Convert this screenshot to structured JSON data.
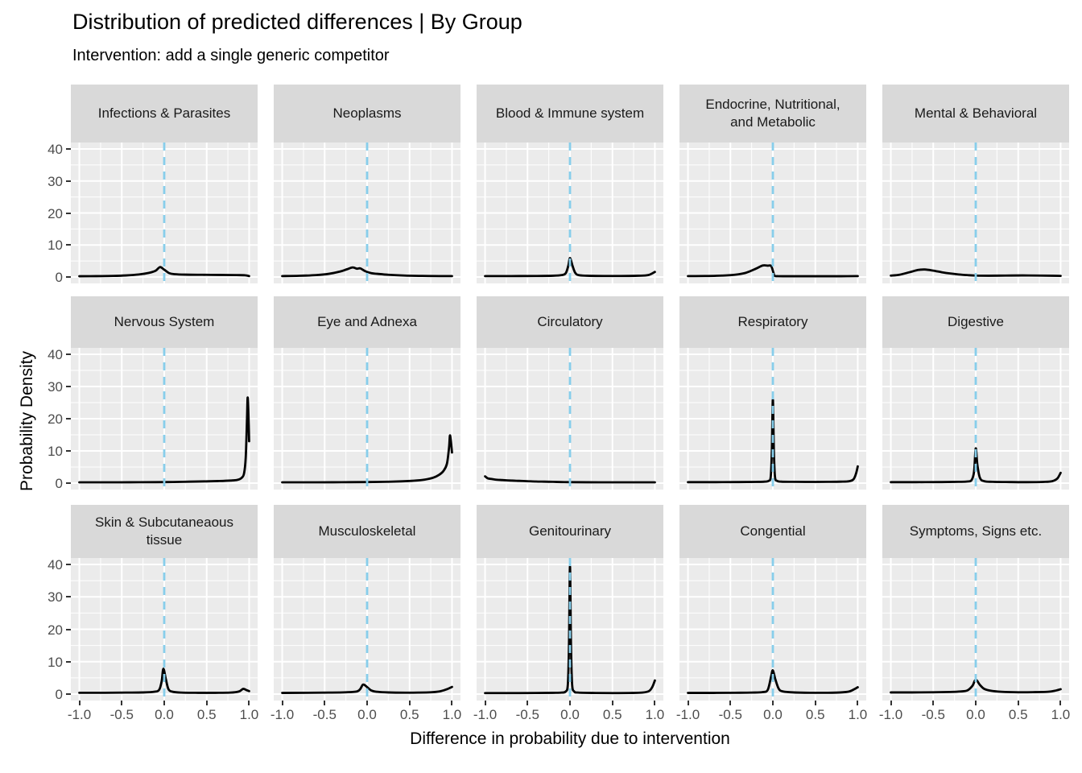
{
  "title": "Distribution of predicted differences | By Group",
  "subtitle": "Intervention: add a single generic competitor",
  "chart_data": {
    "type": "line",
    "subtype": "faceted-density",
    "xlabel": "Difference in probability due to intervention",
    "ylabel": "Probability Density",
    "xlim": [
      -1.1,
      1.1
    ],
    "ylim": [
      -2,
      42
    ],
    "x_ticks": [
      -1.0,
      -0.5,
      0.0,
      0.5,
      1.0
    ],
    "x_tick_labels": [
      "-1.0",
      "-0.5",
      "0.0",
      "0.5",
      "1.0"
    ],
    "x_minor_ticks": [
      -0.75,
      -0.25,
      0.25,
      0.75
    ],
    "y_ticks": [
      0,
      10,
      20,
      30,
      40
    ],
    "y_tick_labels": [
      "0",
      "10",
      "20",
      "30",
      "40"
    ],
    "y_minor_ticks": [
      5,
      15,
      25,
      35
    ],
    "grid": true,
    "vline_x": 0,
    "vline_style": "dashed",
    "colors": {
      "panel_bg": "#EBEBEB",
      "strip_bg": "#D9D9D9",
      "grid": "#FFFFFF",
      "curve": "#000000",
      "vline": "#87CEEB",
      "axis_text": "#4D4D4D",
      "tick": "#333333",
      "text": "#1A1A1A"
    },
    "facets": [
      {
        "label": "Infections & Parasites",
        "curve": [
          [
            -1,
            0.25
          ],
          [
            -0.8,
            0.28
          ],
          [
            -0.6,
            0.35
          ],
          [
            -0.45,
            0.5
          ],
          [
            -0.3,
            0.8
          ],
          [
            -0.18,
            1.3
          ],
          [
            -0.1,
            2.0
          ],
          [
            -0.05,
            3.1
          ],
          [
            0,
            2.3
          ],
          [
            0.06,
            1.2
          ],
          [
            0.12,
            0.9
          ],
          [
            0.25,
            0.75
          ],
          [
            0.45,
            0.7
          ],
          [
            0.65,
            0.65
          ],
          [
            0.85,
            0.6
          ],
          [
            0.95,
            0.55
          ],
          [
            1,
            0.3
          ]
        ]
      },
      {
        "label": "Neoplasms",
        "curve": [
          [
            -1,
            0.3
          ],
          [
            -0.8,
            0.38
          ],
          [
            -0.6,
            0.6
          ],
          [
            -0.45,
            1.0
          ],
          [
            -0.32,
            1.7
          ],
          [
            -0.24,
            2.4
          ],
          [
            -0.17,
            3.0
          ],
          [
            -0.12,
            2.6
          ],
          [
            -0.08,
            2.7
          ],
          [
            -0.02,
            1.8
          ],
          [
            0.05,
            1.2
          ],
          [
            0.12,
            1.0
          ],
          [
            0.25,
            0.7
          ],
          [
            0.45,
            0.45
          ],
          [
            0.65,
            0.35
          ],
          [
            0.85,
            0.3
          ],
          [
            1,
            0.3
          ]
        ]
      },
      {
        "label": "Blood & Immune system",
        "curve": [
          [
            -1,
            0.3
          ],
          [
            -0.7,
            0.3
          ],
          [
            -0.4,
            0.33
          ],
          [
            -0.2,
            0.4
          ],
          [
            -0.1,
            0.6
          ],
          [
            -0.05,
            1.2
          ],
          [
            -0.02,
            3.5
          ],
          [
            0,
            5.9
          ],
          [
            0.03,
            3.5
          ],
          [
            0.06,
            1.4
          ],
          [
            0.1,
            0.6
          ],
          [
            0.2,
            0.4
          ],
          [
            0.4,
            0.33
          ],
          [
            0.6,
            0.33
          ],
          [
            0.8,
            0.4
          ],
          [
            0.92,
            0.6
          ],
          [
            1,
            1.6
          ]
        ]
      },
      {
        "label": "Endocrine, Nutritional,\nand Metabolic",
        "curve": [
          [
            -1,
            0.3
          ],
          [
            -0.8,
            0.32
          ],
          [
            -0.6,
            0.45
          ],
          [
            -0.45,
            0.7
          ],
          [
            -0.32,
            1.3
          ],
          [
            -0.2,
            2.6
          ],
          [
            -0.12,
            3.6
          ],
          [
            -0.06,
            3.55
          ],
          [
            -0.02,
            3.45
          ],
          [
            0.005,
            1.5
          ],
          [
            0.02,
            0.4
          ],
          [
            0.06,
            0.27
          ],
          [
            0.2,
            0.25
          ],
          [
            0.4,
            0.25
          ],
          [
            0.6,
            0.25
          ],
          [
            0.8,
            0.25
          ],
          [
            1,
            0.3
          ]
        ]
      },
      {
        "label": "Mental & Behavioral",
        "curve": [
          [
            -1,
            0.45
          ],
          [
            -0.9,
            0.7
          ],
          [
            -0.78,
            1.5
          ],
          [
            -0.68,
            2.2
          ],
          [
            -0.6,
            2.35
          ],
          [
            -0.5,
            2.0
          ],
          [
            -0.4,
            1.5
          ],
          [
            -0.3,
            1.1
          ],
          [
            -0.2,
            0.8
          ],
          [
            -0.1,
            0.6
          ],
          [
            0,
            0.45
          ],
          [
            0.15,
            0.4
          ],
          [
            0.35,
            0.45
          ],
          [
            0.55,
            0.5
          ],
          [
            0.75,
            0.45
          ],
          [
            0.9,
            0.4
          ],
          [
            1,
            0.35
          ]
        ]
      },
      {
        "label": "Nervous System",
        "curve": [
          [
            -1,
            0.25
          ],
          [
            -0.7,
            0.25
          ],
          [
            -0.4,
            0.27
          ],
          [
            -0.1,
            0.3
          ],
          [
            0.1,
            0.35
          ],
          [
            0.3,
            0.45
          ],
          [
            0.5,
            0.55
          ],
          [
            0.65,
            0.65
          ],
          [
            0.78,
            0.8
          ],
          [
            0.86,
            1.0
          ],
          [
            0.91,
            1.6
          ],
          [
            0.94,
            3.0
          ],
          [
            0.96,
            8
          ],
          [
            0.975,
            20
          ],
          [
            0.982,
            26.5
          ],
          [
            0.99,
            23
          ],
          [
            1,
            13
          ]
        ]
      },
      {
        "label": "Eye and Adnexa",
        "curve": [
          [
            -1,
            0.25
          ],
          [
            -0.6,
            0.25
          ],
          [
            -0.3,
            0.28
          ],
          [
            0,
            0.33
          ],
          [
            0.2,
            0.4
          ],
          [
            0.4,
            0.55
          ],
          [
            0.55,
            0.75
          ],
          [
            0.68,
            1.1
          ],
          [
            0.78,
            1.7
          ],
          [
            0.85,
            2.6
          ],
          [
            0.9,
            3.8
          ],
          [
            0.94,
            6
          ],
          [
            0.965,
            11
          ],
          [
            0.975,
            14.7
          ],
          [
            0.985,
            13.5
          ],
          [
            1,
            9.5
          ]
        ]
      },
      {
        "label": "Circulatory",
        "curve": [
          [
            -1,
            2.1
          ],
          [
            -0.97,
            1.5
          ],
          [
            -0.94,
            1.35
          ],
          [
            -0.88,
            1.1
          ],
          [
            -0.8,
            0.95
          ],
          [
            -0.7,
            0.8
          ],
          [
            -0.6,
            0.7
          ],
          [
            -0.5,
            0.6
          ],
          [
            -0.4,
            0.5
          ],
          [
            -0.3,
            0.45
          ],
          [
            -0.2,
            0.4
          ],
          [
            -0.1,
            0.33
          ],
          [
            0,
            0.3
          ],
          [
            0.2,
            0.27
          ],
          [
            0.45,
            0.25
          ],
          [
            0.7,
            0.25
          ],
          [
            1,
            0.25
          ]
        ]
      },
      {
        "label": "Respiratory",
        "curve": [
          [
            -1,
            0.3
          ],
          [
            -0.7,
            0.3
          ],
          [
            -0.4,
            0.33
          ],
          [
            -0.2,
            0.38
          ],
          [
            -0.1,
            0.45
          ],
          [
            -0.05,
            0.7
          ],
          [
            -0.025,
            2
          ],
          [
            -0.012,
            10
          ],
          [
            0,
            26
          ],
          [
            0.012,
            10
          ],
          [
            0.025,
            2
          ],
          [
            0.05,
            0.7
          ],
          [
            0.1,
            0.45
          ],
          [
            0.25,
            0.4
          ],
          [
            0.45,
            0.38
          ],
          [
            0.65,
            0.4
          ],
          [
            0.8,
            0.45
          ],
          [
            0.9,
            0.6
          ],
          [
            0.95,
            1.2
          ],
          [
            0.98,
            3
          ],
          [
            1,
            5.2
          ]
        ]
      },
      {
        "label": "Digestive",
        "curve": [
          [
            -1,
            0.3
          ],
          [
            -0.7,
            0.3
          ],
          [
            -0.4,
            0.33
          ],
          [
            -0.2,
            0.4
          ],
          [
            -0.1,
            0.5
          ],
          [
            -0.05,
            0.9
          ],
          [
            -0.02,
            3.5
          ],
          [
            0,
            10.8
          ],
          [
            0.02,
            5.5
          ],
          [
            0.05,
            1.6
          ],
          [
            0.1,
            0.6
          ],
          [
            0.2,
            0.4
          ],
          [
            0.4,
            0.33
          ],
          [
            0.6,
            0.3
          ],
          [
            0.8,
            0.38
          ],
          [
            0.9,
            0.6
          ],
          [
            0.96,
            1.4
          ],
          [
            1,
            3.2
          ]
        ]
      },
      {
        "label": "Skin & Subcutaneaous\ntissue",
        "curve": [
          [
            -1,
            0.4
          ],
          [
            -0.7,
            0.4
          ],
          [
            -0.45,
            0.45
          ],
          [
            -0.25,
            0.5
          ],
          [
            -0.12,
            0.7
          ],
          [
            -0.06,
            1.3
          ],
          [
            -0.03,
            4.0
          ],
          [
            -0.01,
            7.8
          ],
          [
            0.02,
            4.5
          ],
          [
            0.05,
            1.5
          ],
          [
            0.1,
            0.7
          ],
          [
            0.2,
            0.45
          ],
          [
            0.4,
            0.38
          ],
          [
            0.6,
            0.38
          ],
          [
            0.78,
            0.45
          ],
          [
            0.88,
            0.8
          ],
          [
            0.93,
            1.6
          ],
          [
            0.97,
            1.2
          ],
          [
            1,
            0.9
          ]
        ]
      },
      {
        "label": "Musculoskeletal",
        "curve": [
          [
            -1,
            0.35
          ],
          [
            -0.7,
            0.4
          ],
          [
            -0.45,
            0.45
          ],
          [
            -0.25,
            0.55
          ],
          [
            -0.12,
            0.8
          ],
          [
            -0.08,
            1.6
          ],
          [
            -0.05,
            2.9
          ],
          [
            -0.02,
            2.6
          ],
          [
            0.05,
            1.1
          ],
          [
            0.12,
            0.7
          ],
          [
            0.25,
            0.5
          ],
          [
            0.45,
            0.42
          ],
          [
            0.6,
            0.45
          ],
          [
            0.75,
            0.55
          ],
          [
            0.85,
            0.8
          ],
          [
            0.93,
            1.4
          ],
          [
            1,
            2.2
          ]
        ]
      },
      {
        "label": "Genitourinary",
        "curve": [
          [
            -1,
            0.3
          ],
          [
            -0.7,
            0.3
          ],
          [
            -0.4,
            0.33
          ],
          [
            -0.2,
            0.38
          ],
          [
            -0.1,
            0.45
          ],
          [
            -0.05,
            0.8
          ],
          [
            -0.025,
            3
          ],
          [
            -0.012,
            15
          ],
          [
            0,
            39.5
          ],
          [
            0.012,
            15
          ],
          [
            0.025,
            3
          ],
          [
            0.05,
            0.8
          ],
          [
            0.1,
            0.45
          ],
          [
            0.3,
            0.33
          ],
          [
            0.5,
            0.3
          ],
          [
            0.7,
            0.33
          ],
          [
            0.85,
            0.45
          ],
          [
            0.93,
            0.9
          ],
          [
            0.97,
            2.2
          ],
          [
            1,
            4.2
          ]
        ]
      },
      {
        "label": "Congential",
        "curve": [
          [
            -1,
            0.35
          ],
          [
            -0.7,
            0.35
          ],
          [
            -0.45,
            0.4
          ],
          [
            -0.25,
            0.45
          ],
          [
            -0.12,
            0.6
          ],
          [
            -0.06,
            1.3
          ],
          [
            -0.02,
            5.5
          ],
          [
            0,
            7.3
          ],
          [
            0.03,
            4.5
          ],
          [
            0.07,
            1.6
          ],
          [
            0.12,
            0.8
          ],
          [
            0.25,
            0.5
          ],
          [
            0.45,
            0.4
          ],
          [
            0.65,
            0.4
          ],
          [
            0.8,
            0.5
          ],
          [
            0.9,
            0.8
          ],
          [
            0.96,
            1.5
          ],
          [
            1,
            2.1
          ]
        ]
      },
      {
        "label": "Symptoms, Signs etc.",
        "curve": [
          [
            -1,
            0.5
          ],
          [
            -0.75,
            0.5
          ],
          [
            -0.5,
            0.55
          ],
          [
            -0.3,
            0.65
          ],
          [
            -0.18,
            0.8
          ],
          [
            -0.1,
            1.1
          ],
          [
            -0.04,
            2.5
          ],
          [
            0,
            4.4
          ],
          [
            0.05,
            2.8
          ],
          [
            0.1,
            1.6
          ],
          [
            0.18,
            1.0
          ],
          [
            0.3,
            0.7
          ],
          [
            0.5,
            0.55
          ],
          [
            0.7,
            0.6
          ],
          [
            0.85,
            0.7
          ],
          [
            0.93,
            1.0
          ],
          [
            1,
            1.5
          ]
        ]
      }
    ]
  }
}
